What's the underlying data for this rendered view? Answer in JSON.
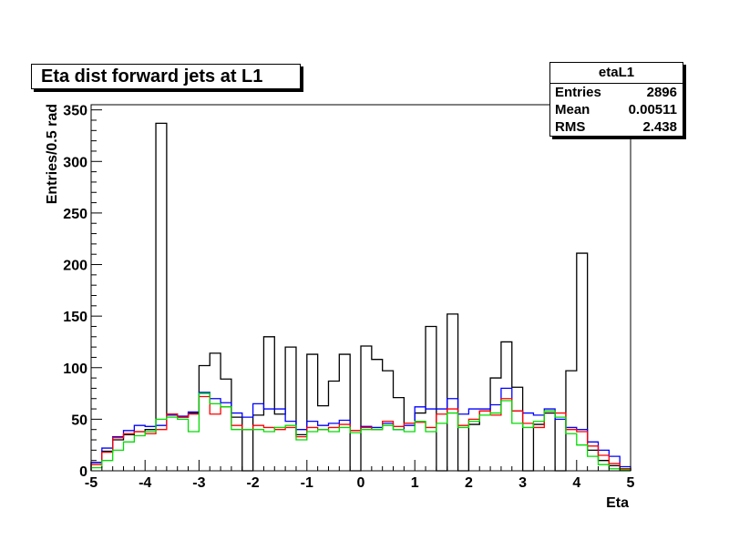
{
  "title": "Eta dist forward jets at L1",
  "stats": {
    "name": "etaL1",
    "rows": [
      {
        "label": "Entries",
        "value": "2896"
      },
      {
        "label": "Mean",
        "value": "0.00511"
      },
      {
        "label": "RMS",
        "value": "2.438"
      }
    ]
  },
  "chart_data": {
    "type": "histogram",
    "xlabel": "Eta",
    "ylabel": "Entries/0.5 rad",
    "xlim": [
      -5,
      5
    ],
    "ylim": [
      0,
      355
    ],
    "x_ticks": [
      -5,
      -4,
      -3,
      -2,
      -1,
      0,
      1,
      2,
      3,
      4,
      5
    ],
    "x_tick_labels": [
      "-5",
      "-4",
      "-3",
      "-2",
      "-1",
      "0",
      "1",
      "2",
      "3",
      "4",
      "5"
    ],
    "y_ticks": [
      0,
      50,
      100,
      150,
      200,
      250,
      300,
      350
    ],
    "y_tick_labels": [
      "0",
      "50",
      "100",
      "150",
      "200",
      "250",
      "300",
      "350"
    ],
    "bin_width": 0.2,
    "grid": false,
    "series": [
      {
        "color": "#000000",
        "values": [
          8,
          19,
          30,
          35,
          38,
          40,
          337,
          55,
          52,
          56,
          102,
          114,
          89,
          52,
          0,
          54,
          130,
          55,
          120,
          35,
          113,
          63,
          87,
          113,
          0,
          121,
          108,
          97,
          71,
          46,
          56,
          140,
          0,
          152,
          0,
          45,
          58,
          90,
          125,
          81,
          0,
          45,
          56,
          0,
          97,
          211,
          20,
          10,
          5,
          2
        ]
      },
      {
        "color": "#0000ff",
        "values": [
          8,
          22,
          33,
          39,
          44,
          43,
          44,
          54,
          53,
          57,
          76,
          70,
          66,
          56,
          52,
          65,
          60,
          60,
          48,
          40,
          48,
          44,
          46,
          49,
          39,
          43,
          42,
          46,
          40,
          44,
          62,
          60,
          60,
          70,
          55,
          60,
          60,
          64,
          80,
          58,
          56,
          54,
          60,
          50,
          42,
          40,
          28,
          20,
          14,
          4
        ]
      },
      {
        "color": "#ff0000",
        "values": [
          6,
          18,
          32,
          36,
          38,
          36,
          40,
          55,
          52,
          55,
          72,
          55,
          62,
          44,
          40,
          44,
          42,
          40,
          42,
          33,
          42,
          40,
          42,
          45,
          39,
          42,
          40,
          48,
          43,
          46,
          47,
          42,
          55,
          60,
          44,
          50,
          58,
          54,
          70,
          58,
          46,
          42,
          58,
          56,
          40,
          38,
          24,
          15,
          7,
          2
        ]
      },
      {
        "color": "#00dd00",
        "values": [
          3,
          10,
          20,
          28,
          34,
          38,
          50,
          52,
          50,
          38,
          75,
          65,
          62,
          40,
          40,
          40,
          38,
          42,
          44,
          30,
          38,
          40,
          38,
          42,
          37,
          40,
          40,
          44,
          40,
          38,
          48,
          38,
          46,
          56,
          42,
          48,
          54,
          56,
          68,
          46,
          42,
          48,
          58,
          52,
          36,
          25,
          14,
          6,
          2,
          1
        ]
      }
    ]
  }
}
